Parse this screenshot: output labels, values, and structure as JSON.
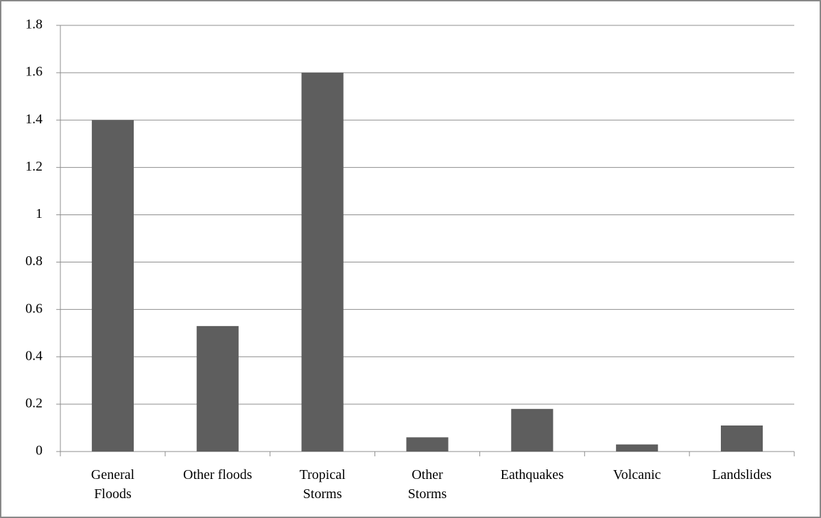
{
  "chart_data": {
    "type": "bar",
    "categories": [
      "General Floods",
      "Other floods",
      "Tropical Storms",
      "Other Storms",
      "Eathquakes",
      "Volcanic",
      "Landslides"
    ],
    "values": [
      1.4,
      0.53,
      1.6,
      0.06,
      0.18,
      0.03,
      0.11
    ],
    "color": "#5e5e5e",
    "ylim": [
      0,
      1.8
    ],
    "yticks": [
      0,
      0.2,
      0.4,
      0.6,
      0.8,
      1,
      1.2,
      1.4,
      1.6,
      1.8
    ],
    "grid": true
  }
}
